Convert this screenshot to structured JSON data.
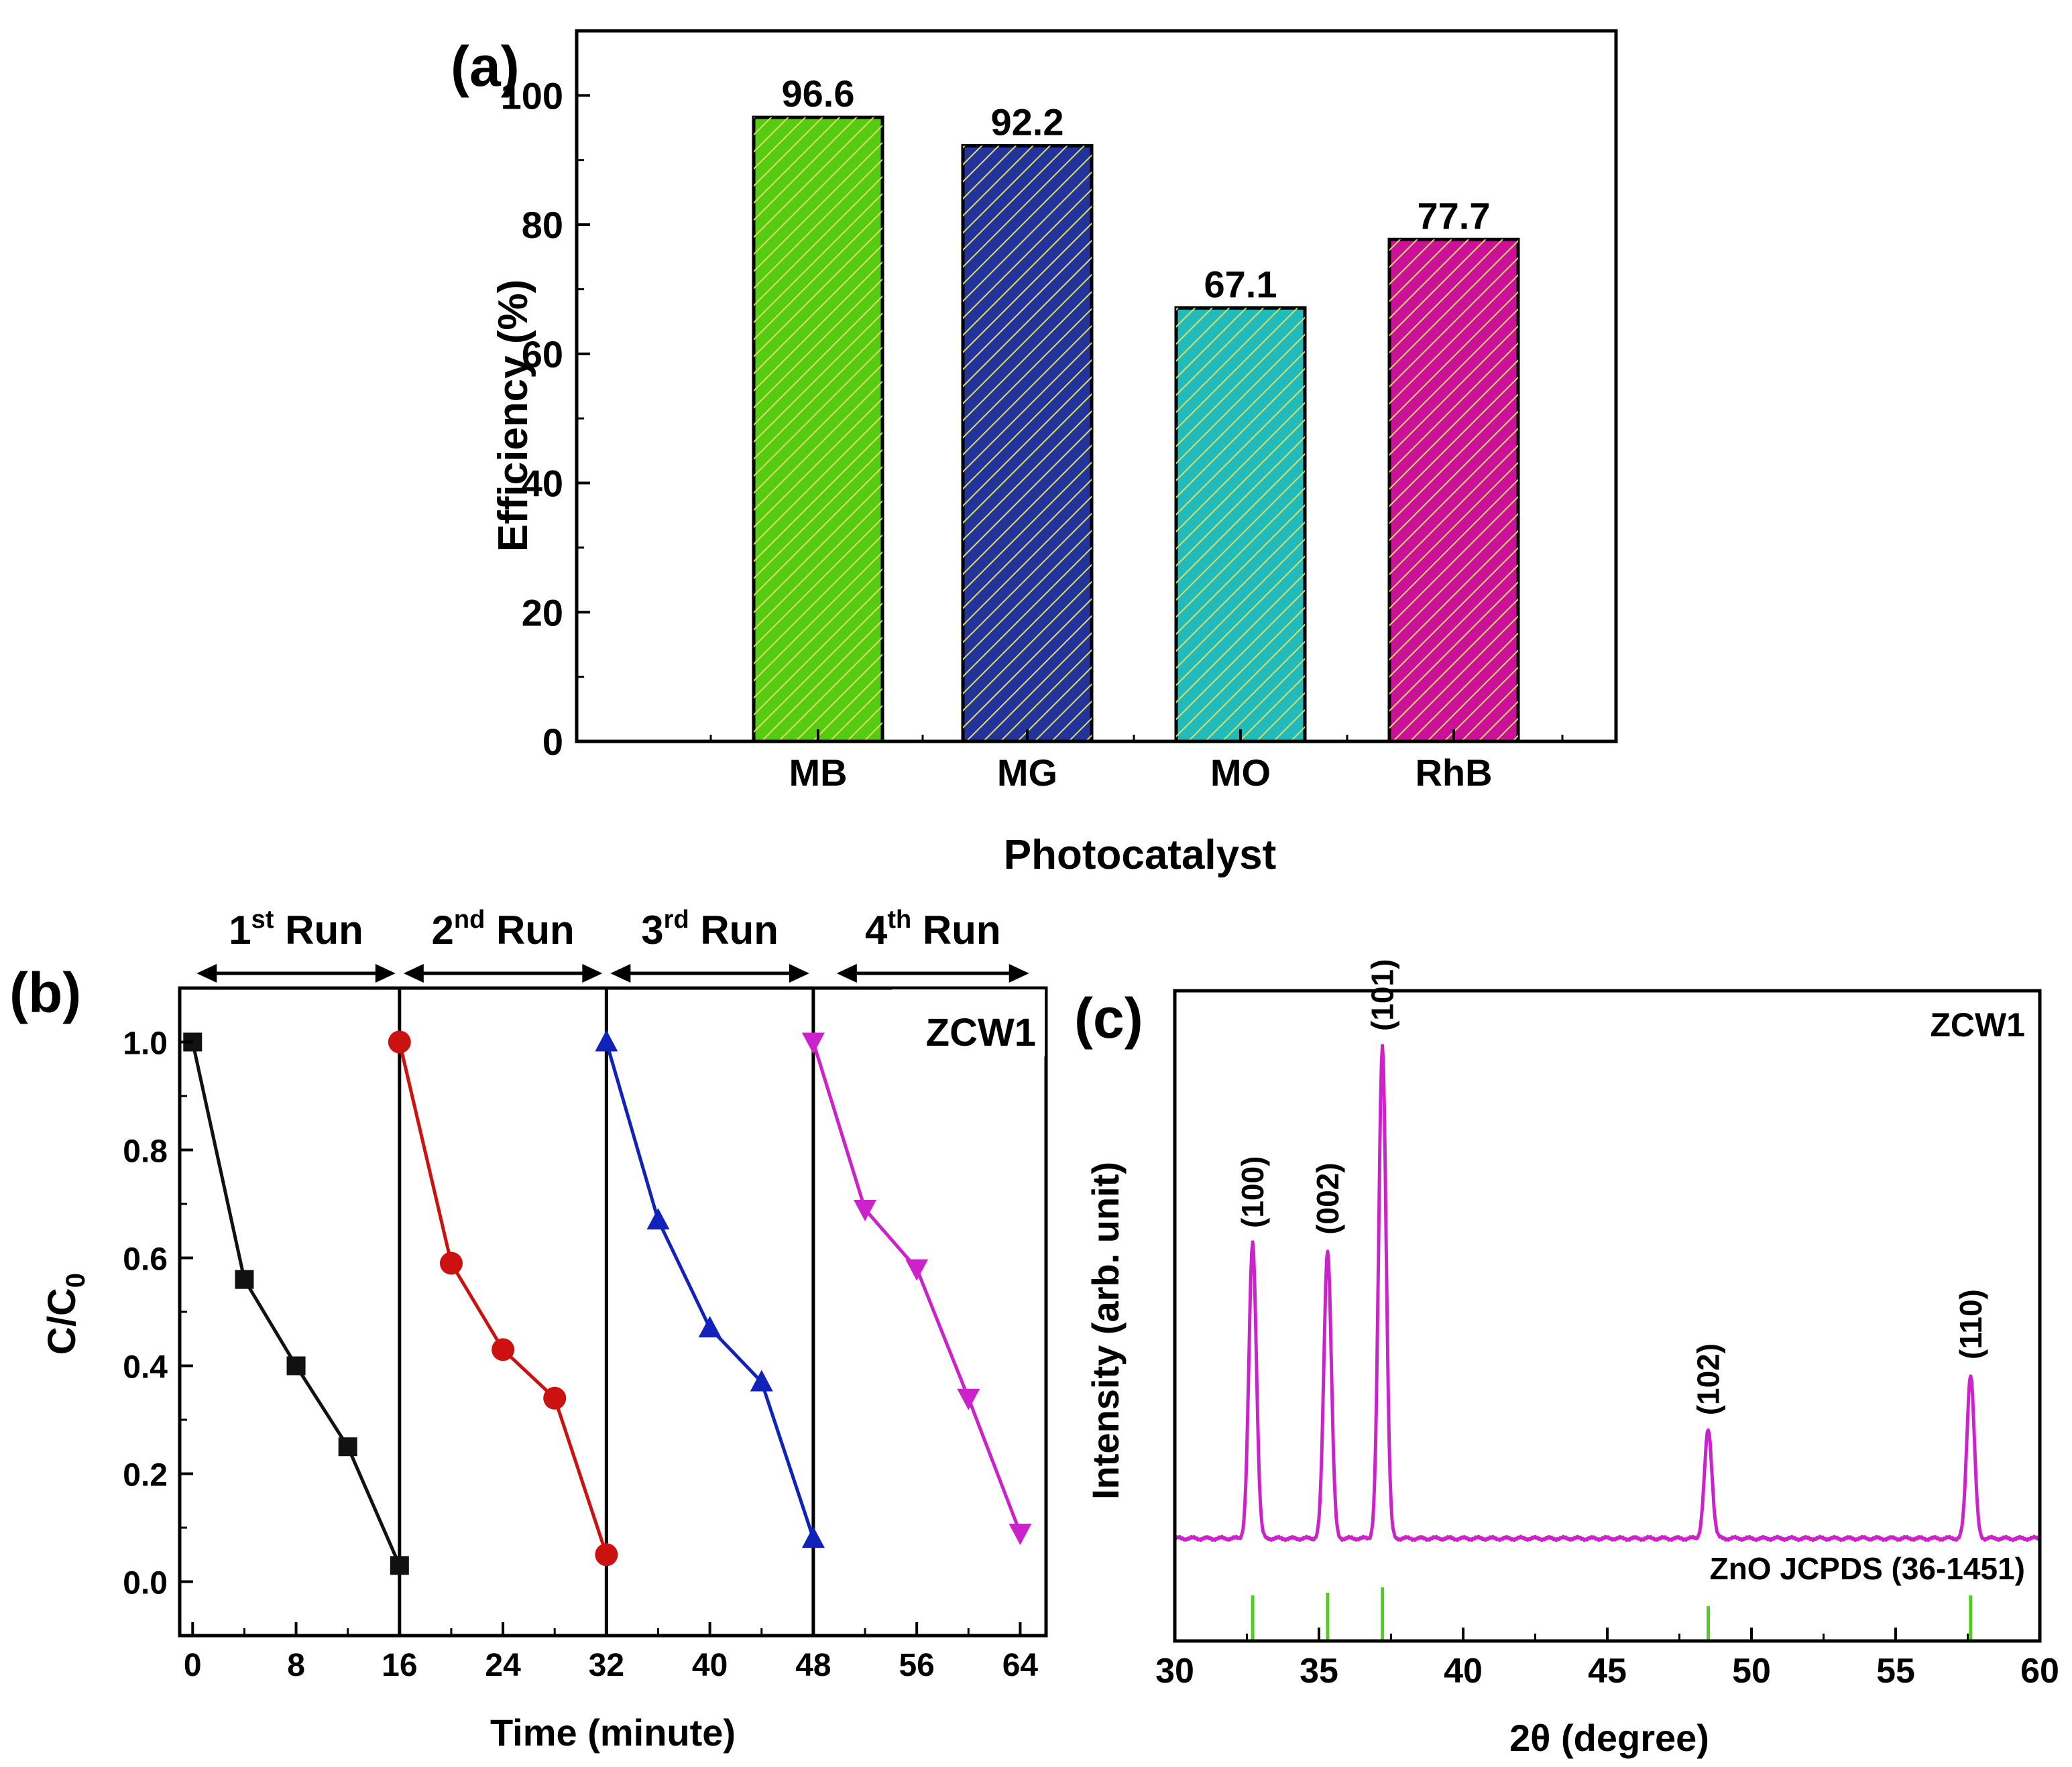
{
  "panels": {
    "a": {
      "label": "(a)"
    },
    "b": {
      "label": "(b)"
    },
    "c": {
      "label": "(c)"
    }
  },
  "chart_data": [
    {
      "id": "a",
      "type": "bar",
      "categories": [
        "MB",
        "MG",
        "MO",
        "RhB"
      ],
      "values": [
        96.6,
        92.2,
        67.1,
        77.7
      ],
      "value_labels": [
        "96.6",
        "92.2",
        "67.1",
        "77.7"
      ],
      "colors": [
        "#55cc11",
        "#223399",
        "#22bbbb",
        "#cc1199"
      ],
      "hatch_color": "#dddd66",
      "xlabel": "Photocatalyst",
      "ylabel": "Efficiency (%)",
      "ylim": [
        0,
        110
      ],
      "yticks": [
        0,
        20,
        40,
        60,
        80,
        100
      ],
      "grid": false
    },
    {
      "id": "b",
      "type": "line",
      "xlabel": "Time (minute)",
      "ylabel_main": "C/C",
      "ylabel_sub": "0",
      "xlim": [
        -1,
        66
      ],
      "ylim": [
        -0.1,
        1.1
      ],
      "xticks": [
        0,
        8,
        16,
        24,
        32,
        40,
        48,
        56,
        64
      ],
      "yticks": [
        0.0,
        0.2,
        0.4,
        0.6,
        0.8,
        1.0
      ],
      "tick_labels_y": [
        "0.0",
        "0.2",
        "0.4",
        "0.6",
        "0.8",
        "1.0"
      ],
      "sample": "ZCW1",
      "dividers": [
        16,
        32,
        48
      ],
      "runs": [
        {
          "num": "1",
          "sup": "st",
          "word": "Run",
          "x_from": 0,
          "x_to": 16
        },
        {
          "num": "2",
          "sup": "nd",
          "word": "Run",
          "x_from": 16,
          "x_to": 32
        },
        {
          "num": "3",
          "sup": "rd",
          "word": "Run",
          "x_from": 32,
          "x_to": 48
        },
        {
          "num": "4",
          "sup": "th",
          "word": "Run",
          "x_from": 49.5,
          "x_to": 65
        }
      ],
      "series": [
        {
          "color": "#111111",
          "marker": "square",
          "x": [
            0,
            4,
            8,
            12,
            16
          ],
          "y": [
            1.0,
            0.56,
            0.4,
            0.25,
            0.03
          ]
        },
        {
          "color": "#cc1111",
          "marker": "circle",
          "x": [
            16,
            20,
            24,
            28,
            32
          ],
          "y": [
            1.0,
            0.59,
            0.43,
            0.34,
            0.05
          ]
        },
        {
          "color": "#1122bb",
          "marker": "triangle-up",
          "x": [
            32,
            36,
            40,
            44,
            48
          ],
          "y": [
            1.0,
            0.67,
            0.47,
            0.37,
            0.08
          ]
        },
        {
          "color": "#cc22cc",
          "marker": "triangle-down",
          "x": [
            48,
            52,
            56,
            60,
            64
          ],
          "y": [
            1.0,
            0.69,
            0.58,
            0.34,
            0.09
          ]
        }
      ],
      "grid": false
    },
    {
      "id": "c",
      "type": "line",
      "xlabel": "2θ (degree)",
      "ylabel": "Intensity (arb. unit)",
      "xlim": [
        30,
        60
      ],
      "xticks": [
        30,
        35,
        40,
        45,
        50,
        55,
        60
      ],
      "sample": "ZCW1",
      "reference": "ZnO JCPDS (36-1451)",
      "line_color": "#cc22cc",
      "ref_color": "#55cc22",
      "baseline": 0.08,
      "peaks": [
        {
          "x": 32.7,
          "height": 0.45,
          "label": "(100)"
        },
        {
          "x": 35.3,
          "height": 0.44,
          "label": "(002)"
        },
        {
          "x": 37.2,
          "height": 0.75,
          "label": "(101)"
        },
        {
          "x": 48.5,
          "height": 0.165,
          "label": "(102)"
        },
        {
          "x": 57.6,
          "height": 0.25,
          "label": "(110)"
        }
      ],
      "reference_lines": [
        {
          "x": 32.7,
          "height": 0.85
        },
        {
          "x": 35.3,
          "height": 0.9
        },
        {
          "x": 37.2,
          "height": 1.0
        },
        {
          "x": 48.5,
          "height": 0.65
        },
        {
          "x": 57.6,
          "height": 0.85
        }
      ],
      "grid": false
    }
  ]
}
